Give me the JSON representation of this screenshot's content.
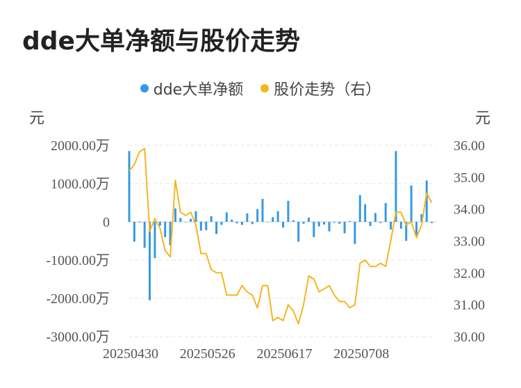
{
  "title": "dde大单净额与股价走势",
  "colors": {
    "bar": "#3399e6",
    "line": "#f5b51e",
    "grid": "#e6e6e6",
    "text": "#555555"
  },
  "chart_data": {
    "type": "bar+line",
    "legend": [
      {
        "name": "dde大单净额",
        "color": "#3399e6"
      },
      {
        "name": "股价走势（右）",
        "color": "#f5b51e"
      }
    ],
    "left_unit": "元",
    "right_unit": "元",
    "left_ticks": [
      "2000.00万",
      "1000.00万",
      "0",
      "-1000.00万",
      "-2000.00万",
      "-3000.00万"
    ],
    "left_values": [
      2000,
      1000,
      0,
      -1000,
      -2000,
      -3000
    ],
    "right_ticks": [
      "36.00",
      "35.00",
      "34.00",
      "33.00",
      "32.00",
      "31.00",
      "30.00"
    ],
    "right_values": [
      36,
      35,
      34,
      33,
      32,
      31,
      30
    ],
    "ylim_left": [
      -3000,
      2000
    ],
    "ylim_right": [
      30,
      36
    ],
    "x_labels": [
      {
        "index": 0,
        "label": "20250430"
      },
      {
        "index": 15,
        "label": "20250526"
      },
      {
        "index": 30,
        "label": "20250617"
      },
      {
        "index": 45,
        "label": "20250708"
      }
    ],
    "bars": [
      1850,
      -520,
      -20,
      -680,
      -2050,
      -950,
      -100,
      -400,
      -620,
      350,
      100,
      0,
      80,
      280,
      -230,
      -220,
      150,
      -320,
      -80,
      250,
      60,
      -40,
      -80,
      220,
      -60,
      330,
      600,
      -10,
      120,
      280,
      -150,
      550,
      40,
      -520,
      -50,
      110,
      -400,
      -120,
      -70,
      -250,
      -20,
      -50,
      -300,
      20,
      -580,
      700,
      460,
      -110,
      230,
      -30,
      490,
      -200,
      1850,
      -180,
      -500,
      950,
      -350,
      200,
      1080,
      -30
    ],
    "prices": [
      35.2,
      35.4,
      35.8,
      35.9,
      33.3,
      33.7,
      33.4,
      32.7,
      32.5,
      34.9,
      33.9,
      33.8,
      33.9,
      33.5,
      32.6,
      32.6,
      32.1,
      32.0,
      32.0,
      31.3,
      31.3,
      31.3,
      31.6,
      31.4,
      31.3,
      30.9,
      31.6,
      31.6,
      30.5,
      30.6,
      30.5,
      31.0,
      30.8,
      30.4,
      31.0,
      31.9,
      31.8,
      31.4,
      31.5,
      31.6,
      31.3,
      31.1,
      31.1,
      30.9,
      31.0,
      32.3,
      32.4,
      32.2,
      32.2,
      32.3,
      32.2,
      33.0,
      33.9,
      33.9,
      33.5,
      33.6,
      33.1,
      33.5,
      34.5,
      34.2
    ]
  }
}
